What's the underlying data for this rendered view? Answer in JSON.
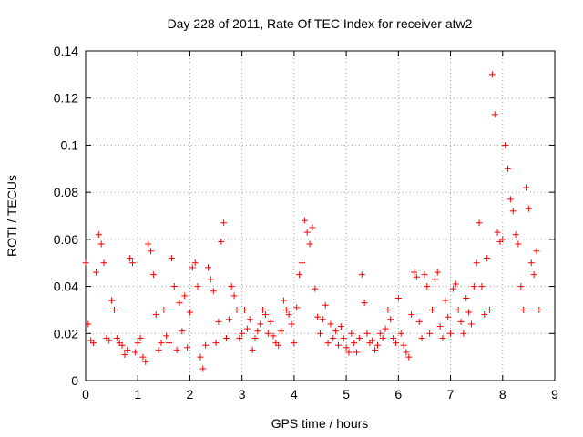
{
  "chart_data": {
    "type": "scatter",
    "title": "Day 228 of 2011, Rate Of TEC Index for receiver atw2",
    "xlabel": "GPS time / hours",
    "ylabel": "ROTI / TECUs",
    "xlim": [
      0,
      9
    ],
    "ylim": [
      0,
      0.14
    ],
    "grid": true,
    "marker": "+",
    "color": "#ff0000",
    "x_ticks": [
      0,
      1,
      2,
      3,
      4,
      5,
      6,
      7,
      8,
      9
    ],
    "x_tick_labels": [
      "0",
      "1",
      "2",
      "3",
      "4",
      "5",
      "6",
      "7",
      "8",
      "9"
    ],
    "y_ticks": [
      0,
      0.02,
      0.04,
      0.06,
      0.08,
      0.1,
      0.12,
      0.14
    ],
    "y_tick_labels": [
      "0",
      "0.02",
      "0.04",
      "0.06",
      "0.08",
      "0.1",
      "0.12",
      "0.14"
    ],
    "series": [
      {
        "name": "ROTI",
        "x": [
          0.0,
          0.05,
          0.1,
          0.15,
          0.2,
          0.25,
          0.3,
          0.35,
          0.4,
          0.45,
          0.5,
          0.55,
          0.6,
          0.65,
          0.7,
          0.75,
          0.8,
          0.85,
          0.9,
          0.95,
          1.0,
          1.05,
          1.1,
          1.15,
          1.2,
          1.25,
          1.3,
          1.35,
          1.4,
          1.45,
          1.5,
          1.55,
          1.6,
          1.65,
          1.7,
          1.75,
          1.8,
          1.85,
          1.9,
          1.95,
          2.0,
          2.05,
          2.1,
          2.15,
          2.2,
          2.25,
          2.3,
          2.35,
          2.4,
          2.45,
          2.5,
          2.55,
          2.6,
          2.65,
          2.7,
          2.75,
          2.8,
          2.85,
          2.9,
          2.95,
          3.0,
          3.05,
          3.1,
          3.15,
          3.2,
          3.25,
          3.3,
          3.35,
          3.4,
          3.45,
          3.5,
          3.55,
          3.6,
          3.65,
          3.7,
          3.75,
          3.8,
          3.85,
          3.9,
          3.95,
          4.0,
          4.05,
          4.1,
          4.15,
          4.2,
          4.25,
          4.3,
          4.35,
          4.4,
          4.45,
          4.5,
          4.55,
          4.6,
          4.65,
          4.7,
          4.75,
          4.8,
          4.85,
          4.9,
          4.95,
          5.0,
          5.05,
          5.1,
          5.15,
          5.2,
          5.25,
          5.3,
          5.35,
          5.4,
          5.45,
          5.5,
          5.55,
          5.6,
          5.65,
          5.7,
          5.75,
          5.8,
          5.85,
          5.9,
          5.95,
          6.0,
          6.05,
          6.1,
          6.15,
          6.2,
          6.25,
          6.3,
          6.35,
          6.4,
          6.45,
          6.5,
          6.55,
          6.6,
          6.65,
          6.7,
          6.75,
          6.8,
          6.85,
          6.9,
          6.95,
          7.0,
          7.05,
          7.1,
          7.15,
          7.2,
          7.25,
          7.3,
          7.35,
          7.4,
          7.45,
          7.5,
          7.55,
          7.6,
          7.65,
          7.7,
          7.75,
          7.8,
          7.85,
          7.9,
          7.95,
          8.0,
          8.05,
          8.1,
          8.15,
          8.2,
          8.25,
          8.3,
          8.35,
          8.4,
          8.45,
          8.5,
          8.55,
          8.6,
          8.65,
          8.7
        ],
        "y": [
          0.05,
          0.024,
          0.017,
          0.016,
          0.046,
          0.062,
          0.058,
          0.05,
          0.018,
          0.017,
          0.034,
          0.03,
          0.018,
          0.016,
          0.015,
          0.011,
          0.013,
          0.052,
          0.05,
          0.012,
          0.016,
          0.018,
          0.01,
          0.008,
          0.058,
          0.055,
          0.045,
          0.028,
          0.013,
          0.016,
          0.03,
          0.019,
          0.016,
          0.052,
          0.04,
          0.013,
          0.033,
          0.021,
          0.036,
          0.014,
          0.029,
          0.048,
          0.05,
          0.04,
          0.01,
          0.005,
          0.015,
          0.048,
          0.043,
          0.038,
          0.016,
          0.025,
          0.059,
          0.067,
          0.018,
          0.026,
          0.04,
          0.036,
          0.03,
          0.018,
          0.02,
          0.03,
          0.022,
          0.026,
          0.013,
          0.018,
          0.021,
          0.024,
          0.03,
          0.028,
          0.02,
          0.025,
          0.019,
          0.016,
          0.015,
          0.021,
          0.034,
          0.03,
          0.028,
          0.024,
          0.016,
          0.031,
          0.045,
          0.05,
          0.068,
          0.063,
          0.058,
          0.065,
          0.039,
          0.027,
          0.02,
          0.026,
          0.032,
          0.016,
          0.024,
          0.018,
          0.021,
          0.015,
          0.023,
          0.018,
          0.014,
          0.012,
          0.02,
          0.016,
          0.012,
          0.018,
          0.045,
          0.033,
          0.02,
          0.016,
          0.017,
          0.013,
          0.015,
          0.02,
          0.018,
          0.022,
          0.03,
          0.026,
          0.018,
          0.016,
          0.035,
          0.02,
          0.015,
          0.012,
          0.01,
          0.028,
          0.046,
          0.044,
          0.025,
          0.018,
          0.045,
          0.04,
          0.02,
          0.03,
          0.043,
          0.046,
          0.023,
          0.018,
          0.034,
          0.027,
          0.02,
          0.039,
          0.041,
          0.03,
          0.025,
          0.02,
          0.035,
          0.029,
          0.024,
          0.04,
          0.05,
          0.067,
          0.04,
          0.028,
          0.052,
          0.03,
          0.13,
          0.113,
          0.063,
          0.059,
          0.06,
          0.1,
          0.09,
          0.077,
          0.072,
          0.062,
          0.058,
          0.04,
          0.03,
          0.082,
          0.073,
          0.05,
          0.045,
          0.055,
          0.03
        ]
      }
    ]
  }
}
